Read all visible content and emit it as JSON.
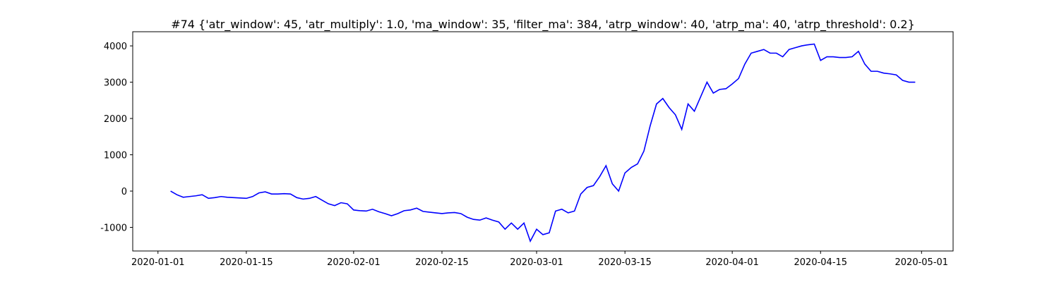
{
  "chart_data": {
    "type": "line",
    "title": "#74 {'atr_window': 45, 'atr_multiply': 1.0, 'ma_window': 35, 'filter_ma': 384, 'atrp_window': 40, 'atrp_ma': 40, 'atrp_threshold': 0.2}",
    "x": [
      "2020-01-03",
      "2020-01-04",
      "2020-01-05",
      "2020-01-06",
      "2020-01-07",
      "2020-01-08",
      "2020-01-09",
      "2020-01-10",
      "2020-01-11",
      "2020-01-12",
      "2020-01-13",
      "2020-01-14",
      "2020-01-15",
      "2020-01-16",
      "2020-01-17",
      "2020-01-18",
      "2020-01-19",
      "2020-01-20",
      "2020-01-21",
      "2020-01-22",
      "2020-01-23",
      "2020-01-24",
      "2020-01-25",
      "2020-01-26",
      "2020-01-27",
      "2020-01-28",
      "2020-01-29",
      "2020-01-30",
      "2020-01-31",
      "2020-02-01",
      "2020-02-02",
      "2020-02-03",
      "2020-02-04",
      "2020-02-05",
      "2020-02-06",
      "2020-02-07",
      "2020-02-08",
      "2020-02-09",
      "2020-02-10",
      "2020-02-11",
      "2020-02-12",
      "2020-02-13",
      "2020-02-14",
      "2020-02-15",
      "2020-02-16",
      "2020-02-17",
      "2020-02-18",
      "2020-02-19",
      "2020-02-20",
      "2020-02-21",
      "2020-02-22",
      "2020-02-23",
      "2020-02-24",
      "2020-02-25",
      "2020-02-26",
      "2020-02-27",
      "2020-02-28",
      "2020-02-29",
      "2020-03-01",
      "2020-03-02",
      "2020-03-03",
      "2020-03-04",
      "2020-03-05",
      "2020-03-06",
      "2020-03-07",
      "2020-03-08",
      "2020-03-09",
      "2020-03-10",
      "2020-03-11",
      "2020-03-12",
      "2020-03-13",
      "2020-03-14",
      "2020-03-15",
      "2020-03-16",
      "2020-03-17",
      "2020-03-18",
      "2020-03-19",
      "2020-03-20",
      "2020-03-21",
      "2020-03-22",
      "2020-03-23",
      "2020-03-24",
      "2020-03-25",
      "2020-03-26",
      "2020-03-27",
      "2020-03-28",
      "2020-03-29",
      "2020-03-30",
      "2020-03-31",
      "2020-04-01",
      "2020-04-02",
      "2020-04-03",
      "2020-04-04",
      "2020-04-05",
      "2020-04-06",
      "2020-04-07",
      "2020-04-08",
      "2020-04-09",
      "2020-04-10",
      "2020-04-11",
      "2020-04-12",
      "2020-04-13",
      "2020-04-14",
      "2020-04-15",
      "2020-04-16",
      "2020-04-17",
      "2020-04-18",
      "2020-04-19",
      "2020-04-20",
      "2020-04-21",
      "2020-04-22",
      "2020-04-23",
      "2020-04-24",
      "2020-04-25",
      "2020-04-26",
      "2020-04-27",
      "2020-04-28",
      "2020-04-29",
      "2020-04-30"
    ],
    "series": [
      {
        "color": "blue",
        "values": [
          0,
          -100,
          -170,
          -150,
          -130,
          -100,
          -200,
          -180,
          -150,
          -170,
          -180,
          -190,
          -200,
          -150,
          -50,
          -20,
          -80,
          -80,
          -70,
          -80,
          -180,
          -220,
          -200,
          -150,
          -250,
          -350,
          -400,
          -320,
          -350,
          -520,
          -540,
          -550,
          -500,
          -570,
          -620,
          -680,
          -620,
          -540,
          -520,
          -470,
          -560,
          -580,
          -600,
          -620,
          -600,
          -590,
          -620,
          -720,
          -780,
          -800,
          -740,
          -800,
          -850,
          -1050,
          -880,
          -1050,
          -880,
          -1380,
          -1050,
          -1200,
          -1150,
          -550,
          -500,
          -600,
          -550,
          -80,
          100,
          150,
          400,
          700,
          200,
          0,
          500,
          650,
          750,
          1100,
          1800,
          2400,
          2550,
          2300,
          2100,
          1700,
          2400,
          2200,
          2600,
          3000,
          2700,
          2800,
          2820,
          2950,
          3100,
          3500,
          3800,
          3850,
          3900,
          3800,
          3800,
          3700,
          3900,
          3950,
          4000,
          4030,
          4050,
          3600,
          3700,
          3700,
          3680,
          3680,
          3700,
          3850,
          3500,
          3300,
          3300,
          3250,
          3230,
          3200,
          3050,
          3000,
          3000
        ]
      }
    ],
    "xlim": [
      "2019-12-28",
      "2020-05-06"
    ],
    "xticks": [
      "2020-01-01",
      "2020-01-15",
      "2020-02-01",
      "2020-02-15",
      "2020-03-01",
      "2020-03-15",
      "2020-04-01",
      "2020-04-15",
      "2020-05-01"
    ],
    "ylim": [
      -1650,
      4390
    ],
    "yticks": [
      -1000,
      0,
      1000,
      2000,
      3000,
      4000
    ],
    "grid": false
  }
}
